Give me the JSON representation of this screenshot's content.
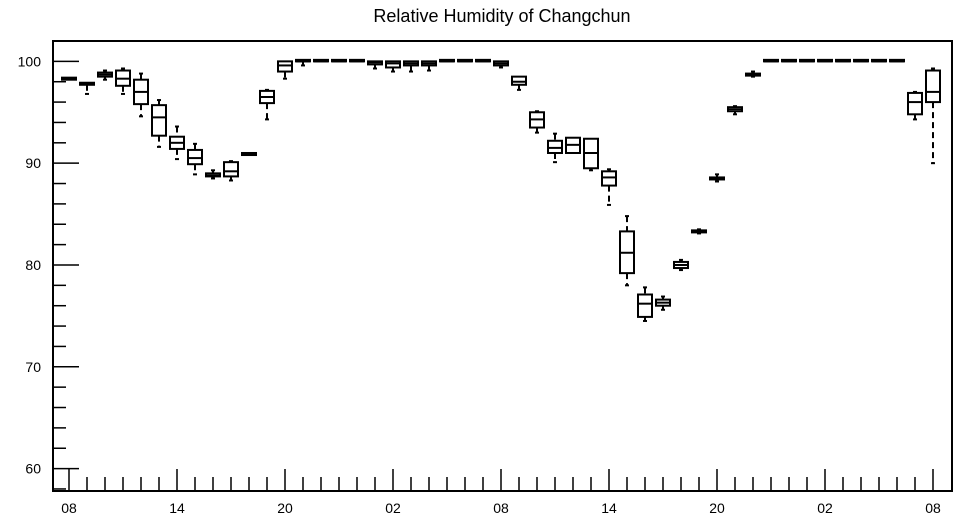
{
  "chart_data": {
    "type": "box",
    "title": "Relative Humidity of Changchun",
    "xlabel": "",
    "ylabel": "",
    "ylim": [
      57.8,
      102
    ],
    "yticks": [
      60,
      70,
      80,
      90,
      100
    ],
    "xtick_labels": [
      "08",
      "14",
      "20",
      "02",
      "08",
      "14",
      "20",
      "02",
      "08"
    ],
    "hours_per_label": 6,
    "n_slots": 49,
    "grid": false,
    "legend": "none",
    "boxes": [
      {
        "slot": 0,
        "min": 98.2,
        "q1": 98.2,
        "median": 98.3,
        "q3": 98.4,
        "max": 98.4
      },
      {
        "slot": 1,
        "min": 96.8,
        "q1": 97.7,
        "median": 97.8,
        "q3": 97.9,
        "max": 97.9
      },
      {
        "slot": 2,
        "min": 98.2,
        "q1": 98.5,
        "median": 98.7,
        "q3": 98.9,
        "max": 99.1
      },
      {
        "slot": 3,
        "min": 96.8,
        "q1": 97.6,
        "median": 98.3,
        "q3": 99.1,
        "max": 99.3
      },
      {
        "slot": 4,
        "min": 94.6,
        "q1": 95.8,
        "median": 97.0,
        "q3": 98.2,
        "max": 98.8
      },
      {
        "slot": 5,
        "min": 91.6,
        "q1": 92.7,
        "median": 94.5,
        "q3": 95.7,
        "max": 96.2
      },
      {
        "slot": 6,
        "min": 90.4,
        "q1": 91.4,
        "median": 92.0,
        "q3": 92.6,
        "max": 93.6
      },
      {
        "slot": 7,
        "min": 88.9,
        "q1": 89.9,
        "median": 90.5,
        "q3": 91.3,
        "max": 91.9
      },
      {
        "slot": 8,
        "min": 88.5,
        "q1": 88.7,
        "median": 88.8,
        "q3": 89.0,
        "max": 89.3
      },
      {
        "slot": 9,
        "min": 88.3,
        "q1": 88.7,
        "median": 89.2,
        "q3": 90.1,
        "max": 90.2
      },
      {
        "slot": 10,
        "min": 90.8,
        "q1": 90.8,
        "median": 90.9,
        "q3": 91.0,
        "max": 91.0
      },
      {
        "slot": 11,
        "min": 94.3,
        "q1": 95.9,
        "median": 96.5,
        "q3": 97.1,
        "max": 97.2
      },
      {
        "slot": 12,
        "min": 98.3,
        "q1": 99.0,
        "median": 99.6,
        "q3": 100.0,
        "max": 100.0
      },
      {
        "slot": 13,
        "min": 99.6,
        "q1": 100.0,
        "median": 100.0,
        "q3": 100.0,
        "max": 100.0
      },
      {
        "slot": 14,
        "min": 100.0,
        "q1": 100.0,
        "median": 100.0,
        "q3": 100.0,
        "max": 100.0
      },
      {
        "slot": 15,
        "min": 100.0,
        "q1": 100.0,
        "median": 100.0,
        "q3": 100.0,
        "max": 100.0
      },
      {
        "slot": 16,
        "min": 100.0,
        "q1": 100.0,
        "median": 100.0,
        "q3": 100.0,
        "max": 100.0
      },
      {
        "slot": 17,
        "min": 99.3,
        "q1": 99.7,
        "median": 99.9,
        "q3": 100.0,
        "max": 100.0
      },
      {
        "slot": 18,
        "min": 99.0,
        "q1": 99.4,
        "median": 99.8,
        "q3": 100.0,
        "max": 100.0
      },
      {
        "slot": 19,
        "min": 99.0,
        "q1": 99.6,
        "median": 99.8,
        "q3": 100.0,
        "max": 100.0
      },
      {
        "slot": 20,
        "min": 99.1,
        "q1": 99.6,
        "median": 99.8,
        "q3": 100.0,
        "max": 100.0
      },
      {
        "slot": 21,
        "min": 100.0,
        "q1": 100.0,
        "median": 100.0,
        "q3": 100.0,
        "max": 100.0
      },
      {
        "slot": 22,
        "min": 100.0,
        "q1": 100.0,
        "median": 100.0,
        "q3": 100.0,
        "max": 100.0
      },
      {
        "slot": 23,
        "min": 100.0,
        "q1": 100.0,
        "median": 100.0,
        "q3": 100.0,
        "max": 100.0
      },
      {
        "slot": 24,
        "min": 99.4,
        "q1": 99.6,
        "median": 99.8,
        "q3": 100.0,
        "max": 100.0
      },
      {
        "slot": 25,
        "min": 97.2,
        "q1": 97.7,
        "median": 98.0,
        "q3": 98.5,
        "max": 98.5
      },
      {
        "slot": 26,
        "min": 93.0,
        "q1": 93.5,
        "median": 94.3,
        "q3": 95.0,
        "max": 95.1
      },
      {
        "slot": 27,
        "min": 90.1,
        "q1": 91.0,
        "median": 91.5,
        "q3": 92.2,
        "max": 92.9
      },
      {
        "slot": 28,
        "min": 91.0,
        "q1": 91.0,
        "median": 91.8,
        "q3": 92.5,
        "max": 92.5
      },
      {
        "slot": 29,
        "min": 89.3,
        "q1": 89.5,
        "median": 91.0,
        "q3": 92.4,
        "max": 92.4
      },
      {
        "slot": 30,
        "min": 85.9,
        "q1": 87.8,
        "median": 88.6,
        "q3": 89.2,
        "max": 89.4
      },
      {
        "slot": 31,
        "min": 78.0,
        "q1": 79.2,
        "median": 81.2,
        "q3": 83.3,
        "max": 84.8
      },
      {
        "slot": 32,
        "min": 74.5,
        "q1": 74.9,
        "median": 76.2,
        "q3": 77.1,
        "max": 77.8
      },
      {
        "slot": 33,
        "min": 75.6,
        "q1": 76.0,
        "median": 76.3,
        "q3": 76.6,
        "max": 76.9
      },
      {
        "slot": 34,
        "min": 79.5,
        "q1": 79.7,
        "median": 80.0,
        "q3": 80.3,
        "max": 80.5
      },
      {
        "slot": 35,
        "min": 83.1,
        "q1": 83.2,
        "median": 83.3,
        "q3": 83.4,
        "max": 83.5
      },
      {
        "slot": 36,
        "min": 88.2,
        "q1": 88.4,
        "median": 88.5,
        "q3": 88.6,
        "max": 88.9
      },
      {
        "slot": 37,
        "min": 94.8,
        "q1": 95.1,
        "median": 95.3,
        "q3": 95.5,
        "max": 95.6
      },
      {
        "slot": 38,
        "min": 98.5,
        "q1": 98.6,
        "median": 98.7,
        "q3": 98.8,
        "max": 99.0
      },
      {
        "slot": 39,
        "min": 100.0,
        "q1": 100.0,
        "median": 100.0,
        "q3": 100.0,
        "max": 100.0
      },
      {
        "slot": 40,
        "min": 100.0,
        "q1": 100.0,
        "median": 100.0,
        "q3": 100.0,
        "max": 100.0
      },
      {
        "slot": 41,
        "min": 100.0,
        "q1": 100.0,
        "median": 100.0,
        "q3": 100.0,
        "max": 100.0
      },
      {
        "slot": 42,
        "min": 100.0,
        "q1": 100.0,
        "median": 100.0,
        "q3": 100.0,
        "max": 100.0
      },
      {
        "slot": 43,
        "min": 100.0,
        "q1": 100.0,
        "median": 100.0,
        "q3": 100.0,
        "max": 100.0
      },
      {
        "slot": 44,
        "min": 100.0,
        "q1": 100.0,
        "median": 100.0,
        "q3": 100.0,
        "max": 100.0
      },
      {
        "slot": 45,
        "min": 100.0,
        "q1": 100.0,
        "median": 100.0,
        "q3": 100.0,
        "max": 100.0
      },
      {
        "slot": 46,
        "min": 100.0,
        "q1": 100.0,
        "median": 100.0,
        "q3": 100.0,
        "max": 100.0
      },
      {
        "slot": 47,
        "min": 94.3,
        "q1": 94.8,
        "median": 96.0,
        "q3": 96.9,
        "max": 97.0
      },
      {
        "slot": 48,
        "min": 90.0,
        "q1": 96.0,
        "median": 97.0,
        "q3": 99.1,
        "max": 99.3
      }
    ]
  }
}
